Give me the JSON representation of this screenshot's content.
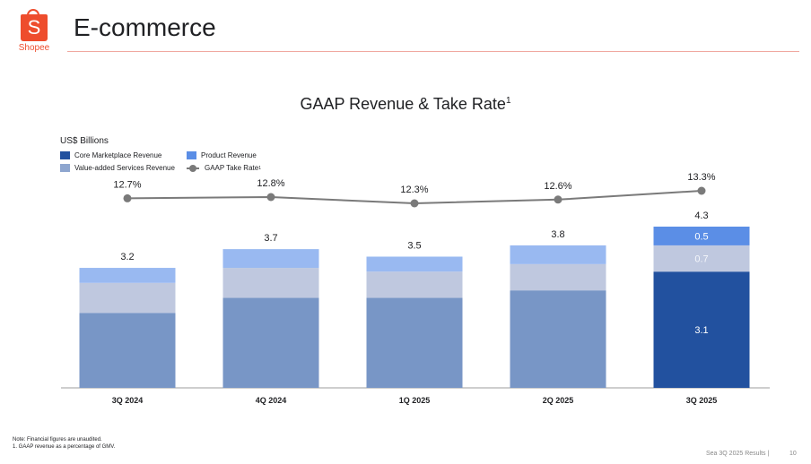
{
  "header": {
    "logo_glyph": "S",
    "logo_text": "Shopee",
    "title": "E-commerce"
  },
  "colors": {
    "brand": "#ee4d2d",
    "core_faded": "#7896c6",
    "core_highlight": "#22519f",
    "vas": "#bfc8df",
    "product": "#99b9f1",
    "product_highlight": "#5b8ee6",
    "line": "#7a7a7a"
  },
  "chart_data": {
    "type": "bar",
    "stacked": true,
    "title": "GAAP Revenue & Take Rate",
    "title_superscript": "1",
    "ylabel": "US$ Billions",
    "categories": [
      "3Q 2024",
      "4Q 2024",
      "1Q 2025",
      "2Q 2025",
      "3Q 2025"
    ],
    "series": [
      {
        "name": "Core Marketplace Revenue",
        "values": [
          2.0,
          2.4,
          2.4,
          2.6,
          3.1
        ]
      },
      {
        "name": "Value-added Services Revenue",
        "values": [
          0.8,
          0.8,
          0.7,
          0.7,
          0.7
        ]
      },
      {
        "name": "Product Revenue",
        "values": [
          0.4,
          0.5,
          0.4,
          0.5,
          0.5
        ]
      }
    ],
    "totals": [
      3.2,
      3.7,
      3.5,
      3.8,
      4.3
    ],
    "segment_labels_shown_for": "3Q 2025",
    "line_series": {
      "name": "GAAP Take Rate",
      "name_superscript": "1",
      "values": [
        12.7,
        12.8,
        12.3,
        12.6,
        13.3
      ],
      "labels": [
        "12.7%",
        "12.8%",
        "12.3%",
        "12.6%",
        "13.3%"
      ]
    },
    "legend": [
      {
        "label": "Core Marketplace Revenue"
      },
      {
        "label": "Product Revenue"
      },
      {
        "label": "Value-added Services Revenue"
      },
      {
        "label": "GAAP Take Rate",
        "superscript": "1"
      }
    ],
    "legend_position": "top-left",
    "ylim": [
      0,
      4.3
    ],
    "grid": false
  },
  "notes": {
    "line1": "Note: Financial figures are unaudited.",
    "line2": "1.       GAAP revenue as a percentage of GMV."
  },
  "footer": {
    "text": "Sea 3Q 2025 Results |",
    "page": "10"
  }
}
